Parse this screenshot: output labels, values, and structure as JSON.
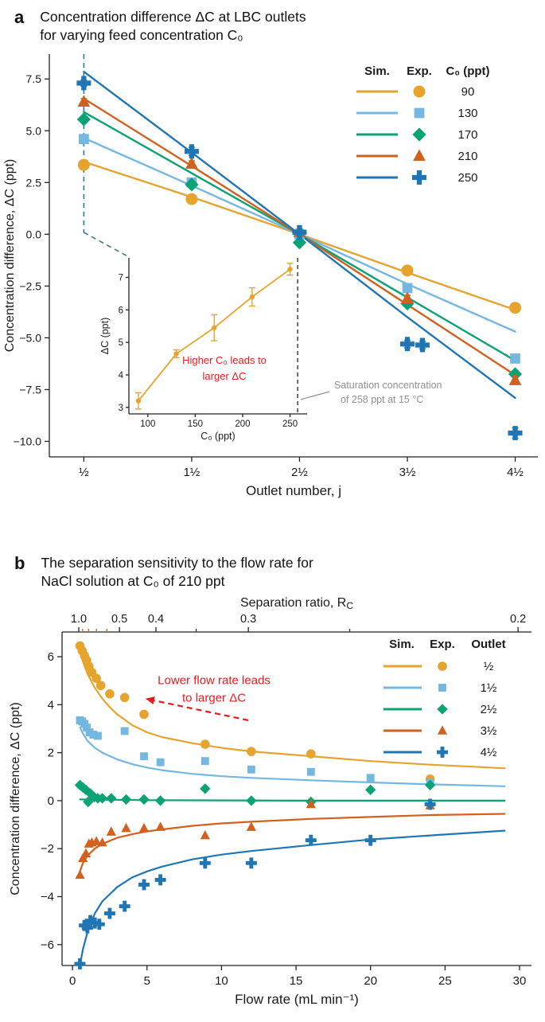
{
  "panels": {
    "a": {
      "label": "a",
      "title_line1": "Concentration difference ΔC at LBC outlets",
      "title_line2": "for varying feed concentration C₀"
    },
    "b": {
      "label": "b",
      "title_line1": "The separation sensitivity to the flow rate for",
      "title_line2": "NaCl solution at C₀ of 210 ppt"
    }
  },
  "chart_data": [
    {
      "id": "panel_a",
      "type": "line+scatter",
      "title": "Concentration difference ΔC at LBC outlets for varying feed concentration C₀",
      "xlabel": "Outlet number, j",
      "ylabel": "Concentration difference, ΔC (ppt)",
      "xlim": [
        0.18,
        4.71
      ],
      "ylim": [
        -10.75,
        8.7
      ],
      "x_ticks": {
        "values": [
          0.5,
          1.5,
          2.5,
          3.5,
          4.5
        ],
        "labels": [
          "½",
          "1½",
          "2½",
          "3½",
          "4½"
        ]
      },
      "y_ticks": {
        "values": [
          7.5,
          5,
          2.5,
          0,
          -2.5,
          -5,
          -7.5,
          -10
        ],
        "labels": [
          "7.5",
          "5.0",
          "2.5",
          "0.0",
          "−2.5",
          "−5.0",
          "−7.5",
          "−10.0"
        ]
      },
      "legend": {
        "col1": "Sim.",
        "col2": "Exp.",
        "col3": "C₀ (ppt)",
        "entries": [
          "90",
          "130",
          "170",
          "210",
          "250"
        ]
      },
      "zoom_color": "#2a7e8c",
      "series": [
        {
          "label": "90",
          "color": "#e6a42e",
          "marker": "circle",
          "sim_y": [
            3.5,
            1.8,
            0,
            -1.85,
            -3.65
          ],
          "exp_y": [
            3.35,
            1.7,
            0.05,
            -1.75,
            -3.55
          ],
          "err": [
            0.1,
            0.1,
            0.08,
            0.1,
            0.12
          ]
        },
        {
          "label": "130",
          "color": "#74b7e0",
          "marker": "square",
          "sim_y": [
            4.65,
            2.35,
            0,
            -2.4,
            -4.7
          ],
          "exp_y": [
            4.6,
            2.5,
            0,
            -2.6,
            -6.0
          ],
          "err": [
            0.1,
            0.12,
            0.08,
            0.12,
            0.15
          ]
        },
        {
          "label": "170",
          "color": "#0ba275",
          "marker": "diamond",
          "sim_y": [
            5.9,
            2.95,
            0,
            -3.05,
            -6.1
          ],
          "exp_y": [
            5.55,
            2.4,
            -0.4,
            -3.35,
            -6.75
          ],
          "err": [
            0.12,
            0.1,
            0.1,
            0.12,
            0.15
          ]
        },
        {
          "label": "210",
          "color": "#d2611f",
          "marker": "triangle",
          "sim_y": [
            6.55,
            3.3,
            0,
            -3.4,
            -6.8
          ],
          "exp_y": [
            6.4,
            3.4,
            0.1,
            -3.1,
            -7.05
          ],
          "err": [
            0.15,
            0.15,
            0.1,
            0.15,
            0.2
          ]
        },
        {
          "label": "250",
          "color": "#2076b4",
          "marker": "plus",
          "sim_y": [
            7.85,
            3.95,
            0,
            -4.0,
            -7.9
          ],
          "exp_x": [
            0.5,
            1.5,
            2.5,
            3.5,
            3.64,
            4.5
          ],
          "exp_y": [
            7.3,
            4.0,
            0.1,
            -5.3,
            -5.35,
            -9.6
          ],
          "err": [
            0.15,
            0.2,
            0.12,
            0.18,
            0.18,
            0.25
          ]
        }
      ],
      "inset": {
        "xlabel": "C₀ (ppt)",
        "ylabel": "ΔC (ppt)",
        "xlim": [
          80,
          268
        ],
        "ylim": [
          2.8,
          7.6
        ],
        "x_ticks": [
          100,
          150,
          200,
          250
        ],
        "y_ticks": [
          3,
          4,
          5,
          6,
          7
        ],
        "color": "#e6a42e",
        "x": [
          90,
          130,
          170,
          210,
          250
        ],
        "y": [
          3.2,
          4.65,
          5.45,
          6.4,
          7.25
        ],
        "err": [
          0.25,
          0.12,
          0.4,
          0.28,
          0.18
        ],
        "note_lines": [
          "Higher C₀ leads to",
          "larger ΔC"
        ],
        "note_color": "#e31c1c",
        "saturation_x": 258,
        "saturation_lines": [
          "Saturation concentration",
          "of 258 ppt at 15 °C"
        ],
        "saturation_text_color": "#909090"
      }
    },
    {
      "id": "panel_b",
      "type": "line+scatter",
      "title": "The separation sensitivity to the flow rate for NaCl solution at C₀ of 210 ppt",
      "xlabel": "Flow rate (mL min⁻¹)",
      "ylabel": "Concentration difference, ΔC (ppt)",
      "xlim": [
        -0.7,
        30.8
      ],
      "ylim": [
        -6.87,
        7.03
      ],
      "x_ticks": {
        "values": [
          0,
          5,
          10,
          15,
          20,
          25,
          30
        ],
        "labels": [
          "0",
          "5",
          "10",
          "15",
          "20",
          "25",
          "30"
        ]
      },
      "y_ticks": {
        "values": [
          6,
          4,
          2,
          0,
          -2,
          -4,
          -6
        ],
        "labels": [
          "6",
          "4",
          "2",
          "0",
          "−2",
          "−4",
          "−6"
        ]
      },
      "top_axis": {
        "label": "Separation ratio, R",
        "label_sub": "C",
        "tick_values": [
          0.42,
          3.15,
          5.6,
          11.8,
          29.9
        ],
        "tick_labels": [
          "1.0",
          "0.5",
          "0.4",
          "0.3",
          "0.2"
        ],
        "minor_ticks": [
          {
            "x": 0.68,
            "color": "#d2611f"
          },
          {
            "x": 1.08,
            "color": "#d2611f"
          },
          {
            "x": 1.6,
            "color": "#d2611f"
          },
          {
            "x": 2.3,
            "color": "#d2611f"
          },
          {
            "x": 8.3,
            "color": "#333333"
          },
          {
            "x": 18.6,
            "color": "#333333"
          }
        ]
      },
      "legend": {
        "col1": "Sim.",
        "col2": "Exp.",
        "col3": "Outlet",
        "entries": [
          "½",
          "1½",
          "2½",
          "3½",
          "4½"
        ]
      },
      "annotation": {
        "lines": [
          "Lower flow rate leads",
          "to larger ΔC"
        ],
        "color": "#e31c1c",
        "text_x": 9.5,
        "text_y": [
          4.85,
          4.12
        ],
        "arrow_tail": [
          11.8,
          3.35
        ],
        "arrow_tip": [
          4.9,
          4.25
        ]
      },
      "series": [
        {
          "label": "½",
          "color": "#e6a42e",
          "marker": "circle",
          "sim_x": [
            0.5,
            0.7,
            1,
            1.5,
            2,
            2.5,
            3,
            4,
            5,
            6,
            8,
            10,
            12,
            16,
            20,
            24,
            29
          ],
          "sim_y": [
            6.2,
            5.8,
            5.3,
            4.7,
            4.25,
            3.9,
            3.6,
            3.15,
            2.85,
            2.65,
            2.4,
            2.2,
            2.05,
            1.85,
            1.65,
            1.5,
            1.35
          ],
          "exp_x": [
            0.5,
            0.65,
            0.8,
            0.95,
            1.1,
            1.3,
            1.6,
            1.9,
            2.5,
            3.5,
            4.8,
            8.9,
            12,
            16,
            24
          ],
          "exp_y": [
            6.45,
            6.25,
            6.05,
            5.85,
            5.6,
            5.35,
            5.1,
            4.8,
            4.45,
            4.3,
            3.6,
            2.35,
            2.05,
            1.95,
            0.9
          ]
        },
        {
          "label": "1½",
          "color": "#74b7e0",
          "marker": "square",
          "sim_x": [
            0.5,
            0.7,
            1,
            1.5,
            2,
            3,
            4,
            5,
            6,
            8,
            10,
            12,
            16,
            20,
            24,
            29
          ],
          "sim_y": [
            3.05,
            2.8,
            2.5,
            2.2,
            2.0,
            1.72,
            1.52,
            1.38,
            1.27,
            1.12,
            1.02,
            0.95,
            0.85,
            0.76,
            0.68,
            0.6
          ],
          "exp_x": [
            0.5,
            0.65,
            0.8,
            0.95,
            1.15,
            1.4,
            1.7,
            3.5,
            4.8,
            5.9,
            8.9,
            12,
            16,
            20,
            24
          ],
          "exp_y": [
            3.35,
            3.3,
            3.2,
            3.05,
            2.85,
            2.75,
            2.7,
            2.9,
            1.85,
            1.6,
            1.65,
            1.3,
            1.2,
            0.95,
            0.75
          ]
        },
        {
          "label": "2½",
          "color": "#0ba275",
          "marker": "diamond",
          "sim_x": [
            0.5,
            5,
            15,
            29
          ],
          "sim_y": [
            0.05,
            0.02,
            0,
            0
          ],
          "exp_x": [
            0.5,
            0.7,
            0.9,
            1.05,
            1.2,
            1.45,
            1.7,
            2,
            2.6,
            3.6,
            4.8,
            5.9,
            8.9,
            12,
            16,
            20,
            24
          ],
          "exp_y": [
            0.65,
            0.55,
            0.45,
            -0.05,
            0.3,
            0.15,
            0.1,
            0.1,
            0.1,
            0.05,
            0.05,
            0,
            0.5,
            0,
            -0.05,
            0.45,
            0.65
          ]
        },
        {
          "label": "3½",
          "color": "#d2611f",
          "marker": "triangle",
          "sim_x": [
            0.5,
            0.7,
            1,
            1.5,
            2,
            3,
            4,
            5,
            6,
            8,
            10,
            12,
            16,
            20,
            24,
            29
          ],
          "sim_y": [
            -2.95,
            -2.6,
            -2.3,
            -2.0,
            -1.8,
            -1.55,
            -1.4,
            -1.28,
            -1.2,
            -1.05,
            -0.95,
            -0.88,
            -0.76,
            -0.68,
            -0.6,
            -0.55
          ],
          "exp_x": [
            0.5,
            0.7,
            0.9,
            1.1,
            1.3,
            1.6,
            2,
            2.6,
            3.6,
            4.8,
            5.9,
            8.9,
            12,
            16,
            24
          ],
          "exp_y": [
            -3.1,
            -2.4,
            -2.2,
            -1.8,
            -1.75,
            -1.7,
            -1.75,
            -1.3,
            -1.15,
            -1.15,
            -1.1,
            -1.45,
            -1.1,
            -0.15,
            -0.2
          ]
        },
        {
          "label": "4½",
          "color": "#2076b4",
          "marker": "plus",
          "sim_x": [
            0.5,
            0.7,
            1,
            1.5,
            2,
            3,
            4,
            5,
            6,
            8,
            10,
            12,
            16,
            20,
            24,
            29
          ],
          "sim_y": [
            -6.85,
            -6.2,
            -5.5,
            -4.7,
            -4.2,
            -3.6,
            -3.2,
            -2.95,
            -2.75,
            -2.45,
            -2.25,
            -2.1,
            -1.85,
            -1.62,
            -1.45,
            -1.25
          ],
          "exp_x": [
            0.5,
            0.8,
            1,
            1.2,
            1.5,
            1.8,
            2.5,
            3.5,
            4.8,
            5.9,
            8.9,
            12,
            16,
            20,
            24
          ],
          "exp_y": [
            -6.8,
            -5.2,
            -5.3,
            -5.0,
            -5.1,
            -5.15,
            -4.7,
            -4.4,
            -3.5,
            -3.3,
            -2.6,
            -2.6,
            -1.65,
            -1.65,
            -0.15
          ]
        }
      ]
    }
  ]
}
